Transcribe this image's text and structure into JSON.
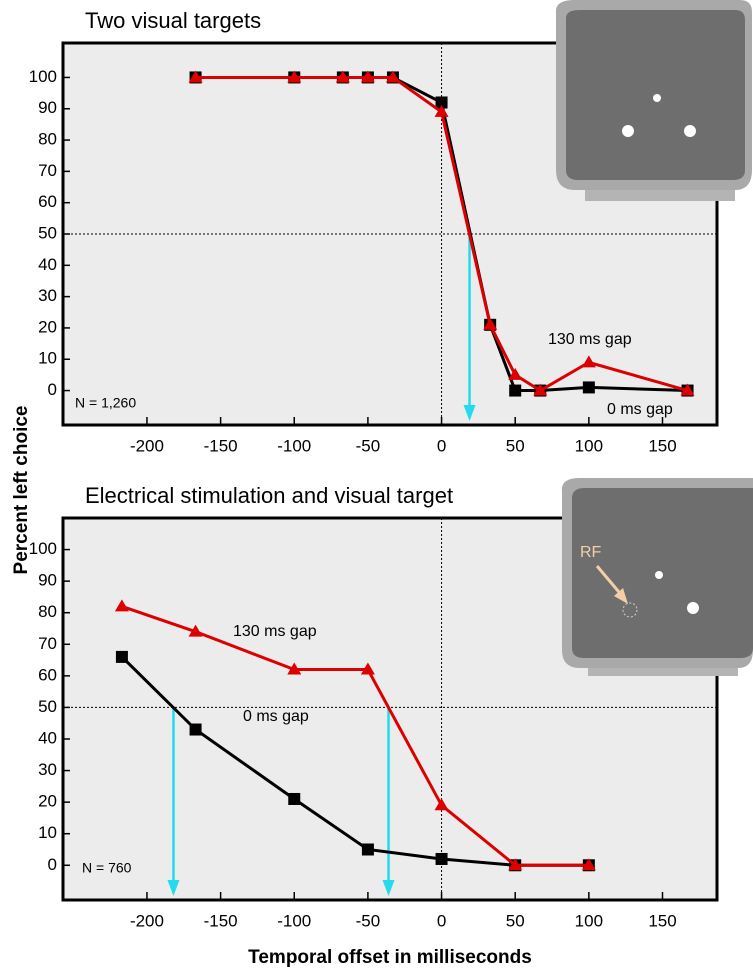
{
  "chart_data": [
    {
      "type": "line",
      "title": "Two visual targets",
      "ylabel": "Percent left choice",
      "xlim": [
        -257,
        187
      ],
      "ylim": [
        -11,
        111
      ],
      "xticks": [
        -200,
        -150,
        -100,
        -50,
        0,
        50,
        100,
        150
      ],
      "yticks": [
        0,
        10,
        20,
        30,
        40,
        50,
        60,
        70,
        80,
        90,
        100
      ],
      "hlines": [
        50
      ],
      "vlines": [
        0
      ],
      "arrows": [
        19
      ],
      "annotations": [
        "130 ms gap",
        "0 ms gap",
        "N = 1,260"
      ],
      "series": [
        {
          "name": "0 ms gap",
          "color": "#000000",
          "marker": "square",
          "x": [
            -167,
            -100,
            -67,
            -50,
            -33,
            0,
            33,
            50,
            67,
            100,
            167
          ],
          "values": [
            100,
            100,
            100,
            100,
            100,
            92,
            21,
            0,
            0,
            1,
            0
          ]
        },
        {
          "name": "130 ms gap",
          "color": "#dd0000",
          "marker": "triangle",
          "x": [
            -167,
            -100,
            -67,
            -50,
            -33,
            0,
            33,
            50,
            67,
            100,
            167
          ],
          "values": [
            100,
            100,
            100,
            100,
            100,
            89,
            21,
            5,
            0,
            9,
            0
          ]
        }
      ]
    },
    {
      "type": "line",
      "title": "Electrical stimulation and visual target",
      "xlabel": "Temporal offset in milliseconds",
      "xlim": [
        -257,
        187
      ],
      "ylim": [
        -11,
        110
      ],
      "xticks": [
        -200,
        -150,
        -100,
        -50,
        0,
        50,
        100,
        150
      ],
      "yticks": [
        0,
        10,
        20,
        30,
        40,
        50,
        60,
        70,
        80,
        90,
        100
      ],
      "hlines": [
        50
      ],
      "vlines": [
        0
      ],
      "arrows": [
        -182,
        -36
      ],
      "annotations": [
        "130 ms gap",
        "0 ms gap",
        "N = 760"
      ],
      "inset_label": "RF",
      "series": [
        {
          "name": "0 ms gap",
          "color": "#000000",
          "marker": "square",
          "x": [
            -217,
            -167,
            -100,
            -50,
            0,
            50,
            100
          ],
          "values": [
            66,
            43,
            21,
            5,
            2,
            0,
            0
          ]
        },
        {
          "name": "130 ms gap",
          "color": "#dd0000",
          "marker": "triangle",
          "x": [
            -217,
            -167,
            -100,
            -50,
            0,
            50,
            100
          ],
          "values": [
            82,
            74,
            62,
            62,
            19,
            0,
            0
          ]
        }
      ]
    }
  ]
}
